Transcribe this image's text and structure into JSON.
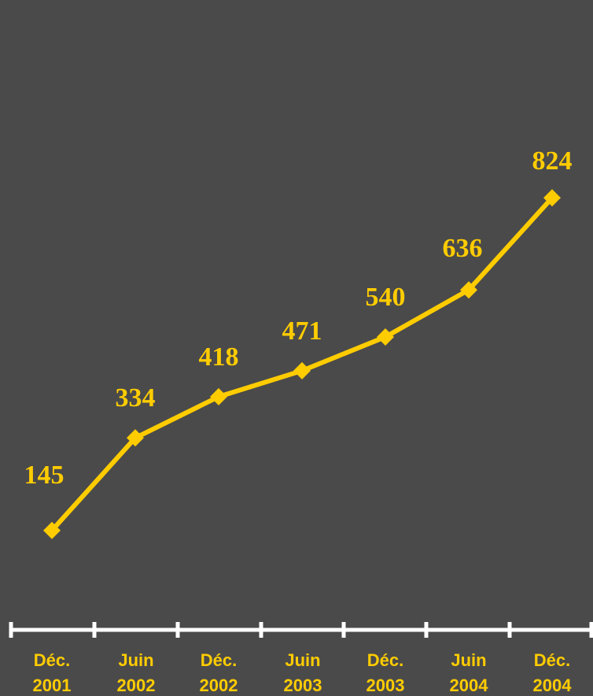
{
  "chart_data": {
    "type": "line",
    "categories": [
      [
        "Déc.",
        "2001"
      ],
      [
        "Juin",
        "2002"
      ],
      [
        "Déc.",
        "2002"
      ],
      [
        "Juin",
        "2003"
      ],
      [
        "Déc.",
        "2003"
      ],
      [
        "Juin",
        "2004"
      ],
      [
        "Déc.",
        "2004"
      ]
    ],
    "series": [
      {
        "values": [
          145,
          334,
          418,
          471,
          540,
          636,
          824
        ]
      }
    ],
    "data_labels": [
      "145",
      "334",
      "418",
      "471",
      "540",
      "636",
      "824"
    ],
    "title": "",
    "xlabel": "",
    "ylabel": "",
    "ylim": [
      0,
      900
    ],
    "grid": false,
    "legend": "none",
    "marker": "diamond",
    "colors": {
      "background": "#4a4a4a",
      "series": "#ffcc00",
      "axis": "#ffffff",
      "labels": "#ffcc00"
    }
  }
}
